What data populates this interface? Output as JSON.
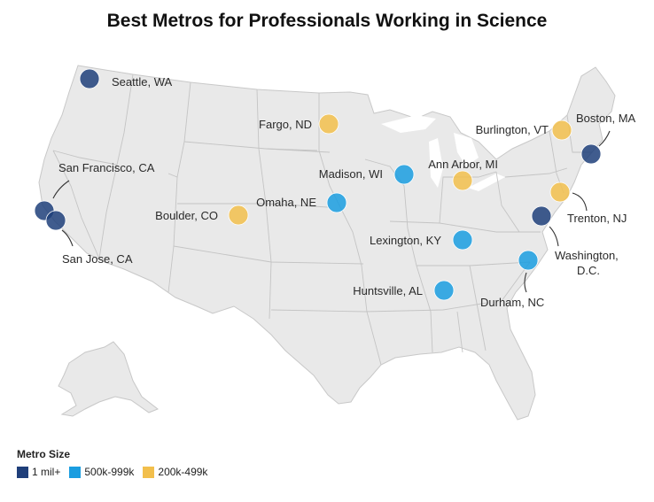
{
  "title": "Best Metros for Professionals Working in Science",
  "legend": {
    "title": "Metro Size",
    "items": [
      {
        "label": "1 mil+",
        "color": "#1f3f7a"
      },
      {
        "label": "500k-999k",
        "color": "#1a9de0"
      },
      {
        "label": "200k-499k",
        "color": "#f2bf4c"
      }
    ]
  },
  "metros": [
    {
      "name": "Seattle, WA",
      "size": "1 mil+"
    },
    {
      "name": "San Francisco, CA",
      "size": "1 mil+"
    },
    {
      "name": "San Jose, CA",
      "size": "1 mil+"
    },
    {
      "name": "Boulder, CO",
      "size": "200k-499k"
    },
    {
      "name": "Fargo, ND",
      "size": "200k-499k"
    },
    {
      "name": "Omaha, NE",
      "size": "500k-999k"
    },
    {
      "name": "Madison, WI",
      "size": "500k-999k"
    },
    {
      "name": "Ann Arbor, MI",
      "size": "200k-499k"
    },
    {
      "name": "Lexington, KY",
      "size": "500k-999k"
    },
    {
      "name": "Huntsville, AL",
      "size": "500k-999k"
    },
    {
      "name": "Durham, NC",
      "size": "500k-999k"
    },
    {
      "name": "Washington, D.C.",
      "size": "1 mil+"
    },
    {
      "name": "Trenton, NJ",
      "size": "200k-499k"
    },
    {
      "name": "Burlington, VT",
      "size": "200k-499k"
    },
    {
      "name": "Boston, MA",
      "size": "1 mil+"
    }
  ]
}
